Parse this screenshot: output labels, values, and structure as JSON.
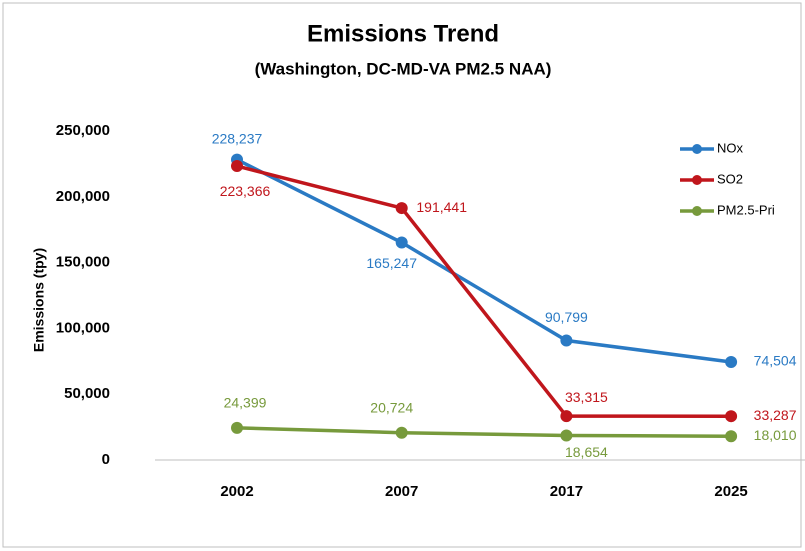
{
  "chart_data": {
    "type": "line",
    "title": "Emissions Trend",
    "subtitle": "(Washington, DC-MD-VA PM2.5 NAA)",
    "y_label": "Emissions (tpy)",
    "categories": [
      "2002",
      "2007",
      "2017",
      "2025"
    ],
    "series": [
      {
        "name": "NOx",
        "color": "#2a7ac4",
        "values": [
          228237,
          165247,
          90799,
          74504
        ],
        "value_labels": [
          "228,237",
          "165,247",
          "90,799",
          "74,504"
        ]
      },
      {
        "name": "SO2",
        "color": "#c0161c",
        "values": [
          223366,
          191441,
          33315,
          33287
        ],
        "value_labels": [
          "223,366",
          "191,441",
          "33,315",
          "33,287"
        ]
      },
      {
        "name": "PM2.5-Pri",
        "color": "#779a3c",
        "values": [
          24399,
          20724,
          18654,
          18010
        ],
        "value_labels": [
          "24,399",
          "20,724",
          "18,654",
          "18,010"
        ]
      }
    ],
    "ylim": [
      0,
      250000
    ],
    "yticks": [
      {
        "value": 0,
        "label": "0"
      },
      {
        "value": 50000,
        "label": "50,000"
      },
      {
        "value": 100000,
        "label": "100,000"
      },
      {
        "value": 150000,
        "label": "150,000"
      },
      {
        "value": 200000,
        "label": "200,000"
      },
      {
        "value": 250000,
        "label": "250,000"
      }
    ],
    "legend": "top-right"
  }
}
